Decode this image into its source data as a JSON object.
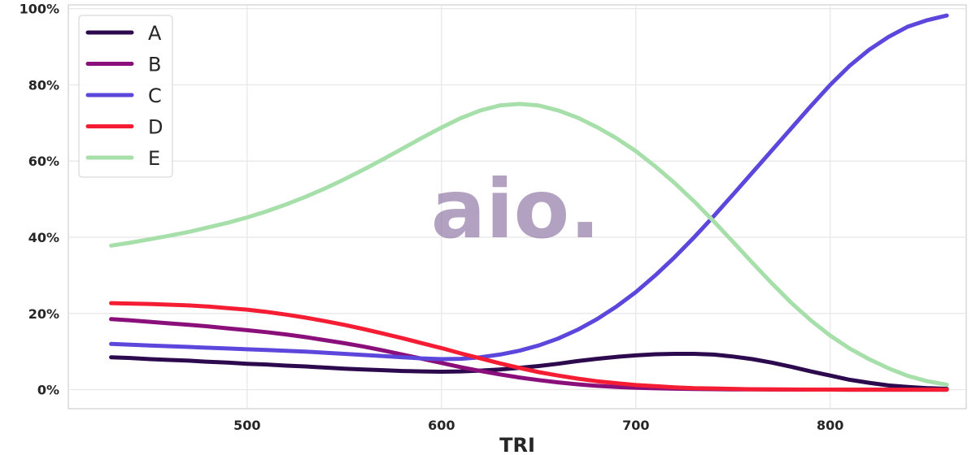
{
  "chart_data": {
    "type": "line",
    "xlabel": "TRI",
    "ylabel": "",
    "xlim": [
      408,
      870
    ],
    "ylim": [
      -5,
      101
    ],
    "x_ticks": [
      500,
      600,
      700,
      800
    ],
    "y_ticks": [
      0,
      20,
      40,
      60,
      80,
      100
    ],
    "y_tick_format": "%",
    "grid": true,
    "legend_position": "top-left",
    "x": [
      430,
      440,
      450,
      460,
      470,
      480,
      490,
      500,
      510,
      520,
      530,
      540,
      550,
      560,
      570,
      580,
      590,
      600,
      610,
      620,
      630,
      640,
      650,
      660,
      670,
      680,
      690,
      700,
      710,
      720,
      730,
      740,
      750,
      760,
      770,
      780,
      790,
      800,
      810,
      820,
      830,
      840,
      850,
      860
    ],
    "series": [
      {
        "name": "A",
        "color": "#2d0a4e",
        "values": [
          8.5,
          8.3,
          8.0,
          7.8,
          7.6,
          7.3,
          7.1,
          6.8,
          6.6,
          6.3,
          6.1,
          5.8,
          5.5,
          5.3,
          5.1,
          4.9,
          4.8,
          4.7,
          4.8,
          5.0,
          5.3,
          5.7,
          6.2,
          6.8,
          7.5,
          8.1,
          8.6,
          9.0,
          9.3,
          9.4,
          9.4,
          9.2,
          8.7,
          8.0,
          7.1,
          6.0,
          4.8,
          3.7,
          2.6,
          1.8,
          1.1,
          0.7,
          0.4,
          0.2
        ]
      },
      {
        "name": "B",
        "color": "#8b0f7a",
        "values": [
          18.5,
          18.2,
          17.8,
          17.4,
          17.0,
          16.6,
          16.1,
          15.6,
          15.1,
          14.5,
          13.8,
          13.0,
          12.2,
          11.3,
          10.3,
          9.2,
          8.1,
          7.0,
          5.9,
          4.9,
          4.0,
          3.2,
          2.5,
          1.9,
          1.4,
          1.0,
          0.7,
          0.5,
          0.35,
          0.25,
          0.18,
          0.12,
          0.08,
          0.05,
          0.03,
          0.02,
          0.01,
          0.01,
          0.0,
          0.0,
          0.0,
          0.0,
          0.0,
          0.0
        ]
      },
      {
        "name": "C",
        "color": "#5b47dc",
        "values": [
          12.0,
          11.8,
          11.6,
          11.4,
          11.2,
          11.0,
          10.8,
          10.6,
          10.4,
          10.2,
          10.0,
          9.7,
          9.4,
          9.1,
          8.8,
          8.5,
          8.2,
          8.0,
          8.1,
          8.5,
          9.2,
          10.2,
          11.6,
          13.4,
          15.7,
          18.5,
          21.8,
          25.6,
          30.0,
          34.8,
          40.0,
          45.5,
          51.2,
          57.0,
          62.8,
          68.6,
          74.4,
          80.0,
          85.0,
          89.2,
          92.6,
          95.3,
          97.0,
          98.2
        ]
      },
      {
        "name": "D",
        "color": "#f51d33",
        "values": [
          22.7,
          22.6,
          22.5,
          22.3,
          22.1,
          21.8,
          21.4,
          21.0,
          20.4,
          19.7,
          18.9,
          18.0,
          17.0,
          15.9,
          14.7,
          13.5,
          12.2,
          10.9,
          9.5,
          8.2,
          6.9,
          5.7,
          4.6,
          3.7,
          2.9,
          2.2,
          1.7,
          1.2,
          0.9,
          0.6,
          0.4,
          0.3,
          0.2,
          0.1,
          0.07,
          0.04,
          0.02,
          0.01,
          0.0,
          0.0,
          0.0,
          0.0,
          0.0,
          0.0
        ]
      },
      {
        "name": "E",
        "color": "#a6dfa9",
        "values": [
          37.8,
          38.6,
          39.5,
          40.4,
          41.4,
          42.6,
          43.8,
          45.2,
          46.8,
          48.6,
          50.6,
          52.8,
          55.2,
          57.8,
          60.5,
          63.3,
          66.1,
          68.8,
          71.3,
          73.3,
          74.6,
          75.0,
          74.6,
          73.3,
          71.4,
          68.9,
          66.0,
          62.6,
          58.6,
          54.2,
          49.4,
          44.2,
          38.8,
          33.3,
          27.9,
          22.8,
          18.2,
          14.2,
          10.8,
          8.0,
          5.6,
          3.6,
          2.2,
          1.3
        ]
      }
    ]
  },
  "watermark": {
    "text": "aio.",
    "color": "#8b6fa3"
  }
}
